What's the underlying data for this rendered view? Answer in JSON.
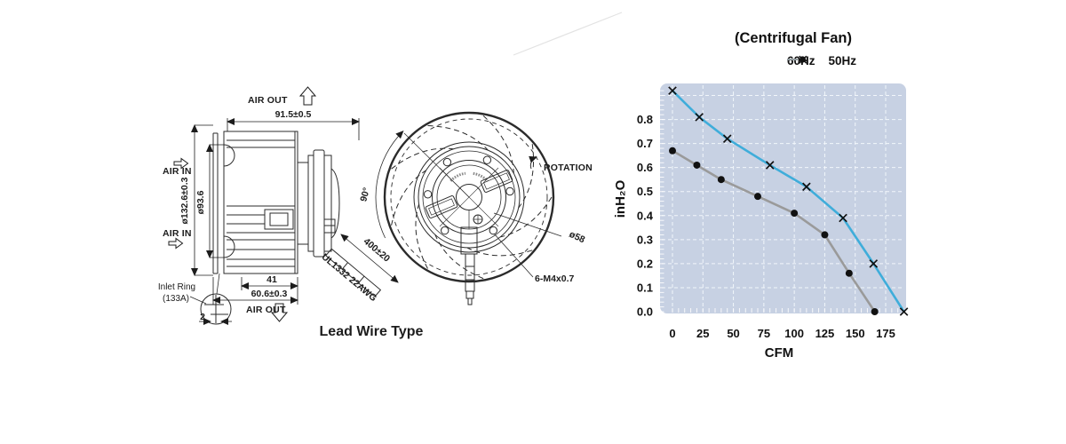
{
  "drawing": {
    "caption": "Lead Wire Type",
    "labels": {
      "air_out_top": "AIR OUT",
      "air_in_top": "AIR IN",
      "air_in_bottom": "AIR IN",
      "air_out_bottom": "AIR OUT",
      "dim_width": "91.5±0.5",
      "dim_outer_dia": "ø132.6±0.3",
      "dim_inner_dia": "ø93.6",
      "dim_outlet": "41",
      "dim_depth": "60.6±0.3",
      "dim_ring_thickness": "2",
      "inlet_ring_line1": "Inlet Ring",
      "inlet_ring_line2": "(133A)",
      "wire_length": "400±20",
      "wire_spec": "UL1332 22AWG",
      "rotation": "ROTATION",
      "dim_hub_dia": "ø58",
      "screw_spec": "6-M4x0.7",
      "angle_90": "90°"
    }
  },
  "chart_data": {
    "type": "line",
    "title": "(Centrifugal Fan)",
    "xlabel": "CFM",
    "ylabel": "inH₂O",
    "xlim": [
      0,
      190
    ],
    "ylim": [
      0,
      0.95
    ],
    "x_ticks": [
      0,
      25,
      50,
      75,
      100,
      125,
      150,
      175
    ],
    "y_ticks": [
      0.8,
      0.7,
      0.6,
      0.5,
      0.4,
      0.3,
      0.2,
      0.1,
      0.0
    ],
    "grid": true,
    "legend_position": "top-right",
    "style": {
      "plot_bg": "#c7d1e3",
      "grid_color": "#f2f6fb",
      "marker_color": "#111111"
    },
    "series": [
      {
        "name": "60Hz",
        "marker": "x",
        "color": "#3fadda",
        "points": [
          [
            0,
            0.92
          ],
          [
            22,
            0.81
          ],
          [
            45,
            0.72
          ],
          [
            80,
            0.61
          ],
          [
            110,
            0.52
          ],
          [
            140,
            0.39
          ],
          [
            165,
            0.2
          ],
          [
            190,
            0.0
          ]
        ]
      },
      {
        "name": "50Hz",
        "marker": "dot",
        "color": "#9a9a9a",
        "points": [
          [
            0,
            0.67
          ],
          [
            20,
            0.61
          ],
          [
            40,
            0.55
          ],
          [
            70,
            0.48
          ],
          [
            100,
            0.41
          ],
          [
            125,
            0.32
          ],
          [
            145,
            0.16
          ],
          [
            166,
            0.0
          ]
        ]
      }
    ]
  }
}
